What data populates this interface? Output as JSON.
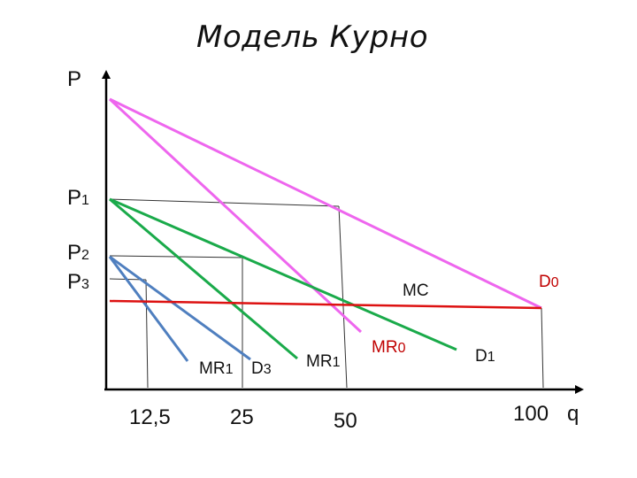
{
  "title": "Модель Курно",
  "axes": {
    "y_label": "P",
    "x_label": "q",
    "x_ticks": [
      "12,5",
      "25",
      "50",
      "100"
    ],
    "y_ticks": [
      {
        "main": "P",
        "sub": "1"
      },
      {
        "main": "P",
        "sub": "2"
      },
      {
        "main": "P",
        "sub": "3"
      }
    ]
  },
  "curves": {
    "D0": {
      "main": "D",
      "sub": "0"
    },
    "MR0": {
      "main": "MR",
      "sub": "0"
    },
    "D1": {
      "main": "D",
      "sub": "1"
    },
    "MR1_a": {
      "main": "MR",
      "sub": "1"
    },
    "MR1_b": {
      "main": "MR",
      "sub": "1"
    },
    "D3": {
      "main": "D",
      "sub": "3"
    },
    "MC": "MC"
  },
  "colors": {
    "axis": "#000000",
    "demand0": "#ee66ee",
    "demand1": "#1aaa4a",
    "demand3": "#4f7fbf",
    "mc": "#dd1111",
    "guide": "#333333"
  }
}
